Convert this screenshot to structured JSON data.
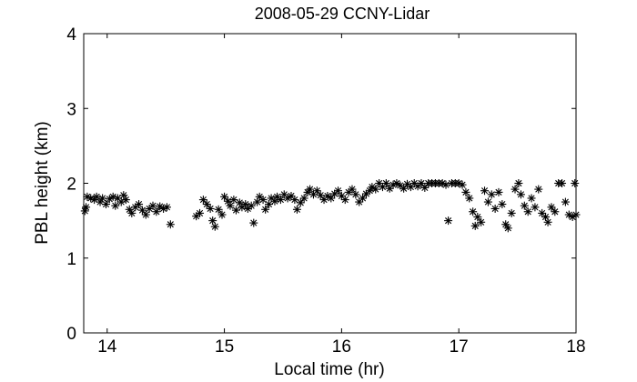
{
  "chart_data": {
    "type": "scatter",
    "title": "2008-05-29 CCNY-Lidar",
    "xlabel": "Local time (hr)",
    "ylabel": "PBL height (km)",
    "xlim": [
      13.8,
      18
    ],
    "ylim": [
      0,
      4
    ],
    "xticks": [
      "14",
      "15",
      "16",
      "17",
      "18"
    ],
    "xtick_values": [
      14,
      15,
      16,
      17,
      18
    ],
    "yticks": [
      "0",
      "1",
      "2",
      "3",
      "4"
    ],
    "ytick_values": [
      0,
      1,
      2,
      3,
      4
    ],
    "marker": "*",
    "grid": false,
    "series": [
      {
        "points": [
          [
            13.81,
            1.63
          ],
          [
            13.82,
            1.68
          ],
          [
            13.83,
            1.82
          ],
          [
            13.86,
            1.8
          ],
          [
            13.89,
            1.78
          ],
          [
            13.91,
            1.82
          ],
          [
            13.94,
            1.75
          ],
          [
            13.96,
            1.8
          ],
          [
            13.99,
            1.72
          ],
          [
            14.02,
            1.79
          ],
          [
            14.05,
            1.82
          ],
          [
            14.07,
            1.7
          ],
          [
            14.09,
            1.8
          ],
          [
            14.12,
            1.75
          ],
          [
            14.14,
            1.84
          ],
          [
            14.16,
            1.78
          ],
          [
            14.19,
            1.65
          ],
          [
            14.21,
            1.6
          ],
          [
            14.24,
            1.68
          ],
          [
            14.27,
            1.72
          ],
          [
            14.3,
            1.64
          ],
          [
            14.33,
            1.58
          ],
          [
            14.36,
            1.66
          ],
          [
            14.39,
            1.7
          ],
          [
            14.42,
            1.62
          ],
          [
            14.45,
            1.69
          ],
          [
            14.48,
            1.66
          ],
          [
            14.51,
            1.68
          ],
          [
            14.54,
            1.45
          ],
          [
            14.76,
            1.56
          ],
          [
            14.79,
            1.6
          ],
          [
            14.82,
            1.78
          ],
          [
            14.85,
            1.72
          ],
          [
            14.88,
            1.66
          ],
          [
            14.9,
            1.5
          ],
          [
            14.92,
            1.42
          ],
          [
            14.95,
            1.65
          ],
          [
            14.98,
            1.58
          ],
          [
            15.0,
            1.82
          ],
          [
            15.03,
            1.76
          ],
          [
            15.05,
            1.7
          ],
          [
            15.08,
            1.78
          ],
          [
            15.1,
            1.64
          ],
          [
            15.13,
            1.74
          ],
          [
            15.15,
            1.68
          ],
          [
            15.18,
            1.72
          ],
          [
            15.2,
            1.66
          ],
          [
            15.23,
            1.7
          ],
          [
            15.25,
            1.47
          ],
          [
            15.28,
            1.75
          ],
          [
            15.3,
            1.82
          ],
          [
            15.33,
            1.78
          ],
          [
            15.35,
            1.65
          ],
          [
            15.38,
            1.72
          ],
          [
            15.4,
            1.8
          ],
          [
            15.43,
            1.76
          ],
          [
            15.45,
            1.82
          ],
          [
            15.48,
            1.78
          ],
          [
            15.51,
            1.85
          ],
          [
            15.54,
            1.8
          ],
          [
            15.57,
            1.83
          ],
          [
            15.6,
            1.78
          ],
          [
            15.62,
            1.65
          ],
          [
            15.65,
            1.74
          ],
          [
            15.68,
            1.8
          ],
          [
            15.71,
            1.88
          ],
          [
            15.73,
            1.92
          ],
          [
            15.76,
            1.85
          ],
          [
            15.79,
            1.9
          ],
          [
            15.82,
            1.84
          ],
          [
            15.85,
            1.78
          ],
          [
            15.88,
            1.83
          ],
          [
            15.91,
            1.8
          ],
          [
            15.94,
            1.86
          ],
          [
            15.97,
            1.9
          ],
          [
            16.0,
            1.83
          ],
          [
            16.03,
            1.78
          ],
          [
            16.06,
            1.88
          ],
          [
            16.09,
            1.92
          ],
          [
            16.12,
            1.85
          ],
          [
            16.15,
            1.75
          ],
          [
            16.18,
            1.8
          ],
          [
            16.21,
            1.86
          ],
          [
            16.24,
            1.9
          ],
          [
            16.26,
            1.95
          ],
          [
            16.29,
            1.92
          ],
          [
            16.32,
            2.0
          ],
          [
            16.35,
            1.95
          ],
          [
            16.38,
            2.0
          ],
          [
            16.41,
            1.93
          ],
          [
            16.44,
            1.98
          ],
          [
            16.47,
            2.0
          ],
          [
            16.5,
            1.97
          ],
          [
            16.53,
            1.93
          ],
          [
            16.56,
            1.99
          ],
          [
            16.59,
            1.95
          ],
          [
            16.62,
            2.0
          ],
          [
            16.65,
            1.96
          ],
          [
            16.68,
            2.0
          ],
          [
            16.71,
            1.94
          ],
          [
            16.74,
            2.0
          ],
          [
            16.77,
            2.0
          ],
          [
            16.8,
            2.0
          ],
          [
            16.83,
            2.0
          ],
          [
            16.86,
            2.0
          ],
          [
            16.89,
            1.98
          ],
          [
            16.91,
            1.5
          ],
          [
            16.94,
            2.0
          ],
          [
            16.97,
            2.0
          ],
          [
            17.0,
            2.0
          ],
          [
            17.03,
            1.98
          ],
          [
            17.06,
            1.88
          ],
          [
            17.09,
            1.8
          ],
          [
            17.12,
            1.62
          ],
          [
            17.14,
            1.43
          ],
          [
            17.16,
            1.55
          ],
          [
            17.19,
            1.48
          ],
          [
            17.22,
            1.9
          ],
          [
            17.25,
            1.75
          ],
          [
            17.28,
            1.85
          ],
          [
            17.31,
            1.66
          ],
          [
            17.34,
            1.88
          ],
          [
            17.37,
            1.72
          ],
          [
            17.4,
            1.45
          ],
          [
            17.42,
            1.4
          ],
          [
            17.45,
            1.6
          ],
          [
            17.48,
            1.92
          ],
          [
            17.51,
            2.0
          ],
          [
            17.53,
            1.85
          ],
          [
            17.56,
            1.7
          ],
          [
            17.59,
            1.62
          ],
          [
            17.62,
            1.8
          ],
          [
            17.65,
            1.68
          ],
          [
            17.68,
            1.92
          ],
          [
            17.71,
            1.6
          ],
          [
            17.74,
            1.55
          ],
          [
            17.76,
            1.48
          ],
          [
            17.79,
            1.68
          ],
          [
            17.82,
            1.62
          ],
          [
            17.85,
            2.0
          ],
          [
            17.88,
            2.0
          ],
          [
            17.91,
            1.75
          ],
          [
            17.94,
            1.58
          ],
          [
            17.97,
            1.55
          ],
          [
            17.99,
            2.0
          ],
          [
            18.0,
            1.58
          ]
        ]
      }
    ]
  }
}
